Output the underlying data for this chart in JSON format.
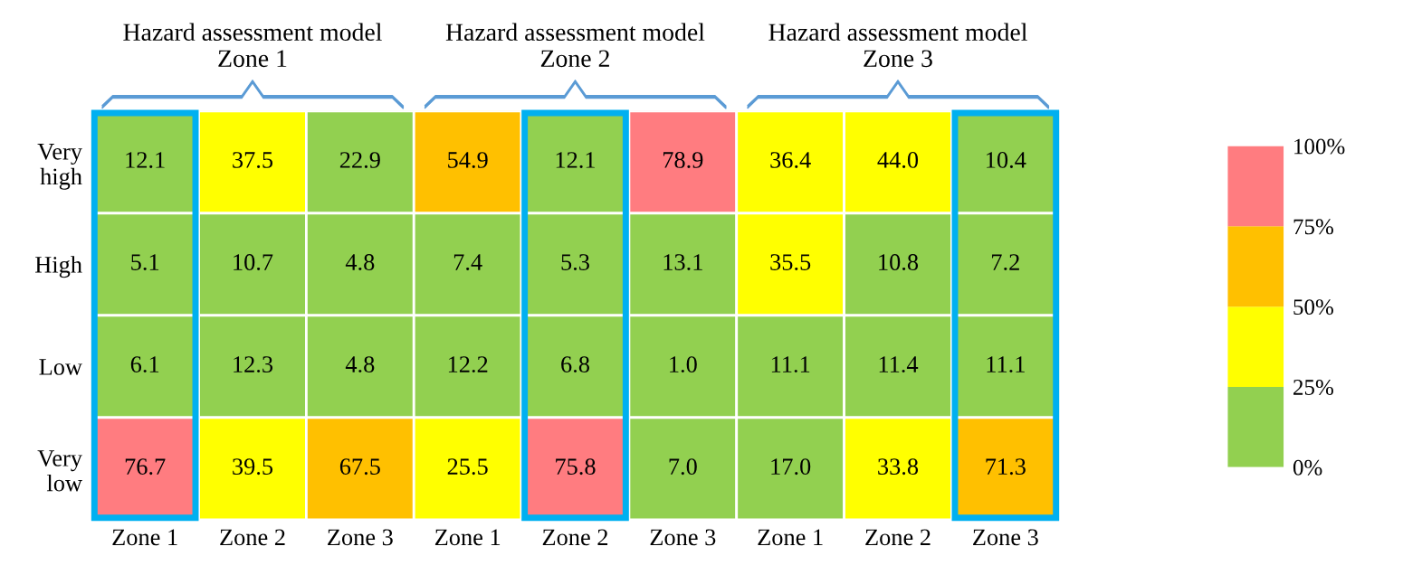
{
  "chart_data": {
    "type": "heatmap",
    "categories": [
      "Zone 1",
      "Zone 2",
      "Zone 3",
      "Zone 1",
      "Zone 2",
      "Zone 3",
      "Zone 1",
      "Zone 2",
      "Zone 3"
    ],
    "y_categories": [
      "Very\nhigh",
      "High",
      "Low",
      "Very\nlow"
    ],
    "cells": [
      [
        12.1,
        37.5,
        22.9,
        54.9,
        12.1,
        78.9,
        36.4,
        44.0,
        10.4
      ],
      [
        5.1,
        10.7,
        4.8,
        7.4,
        5.3,
        13.1,
        35.5,
        10.8,
        7.2
      ],
      [
        6.1,
        12.3,
        4.8,
        12.2,
        6.8,
        1.0,
        11.1,
        11.4,
        11.1
      ],
      [
        76.7,
        39.5,
        67.5,
        25.5,
        75.8,
        7.0,
        17.0,
        33.8,
        71.3
      ]
    ],
    "cell_labels": [
      [
        "12.1",
        "37.5",
        "22.9",
        "54.9",
        "12.1",
        "78.9",
        "36.4",
        "44.0",
        "10.4"
      ],
      [
        "5.1",
        "10.7",
        "4.8",
        "7.4",
        "5.3",
        "13.1",
        "35.5",
        "10.8",
        "7.2"
      ],
      [
        "6.1",
        "12.3",
        "4.8",
        "12.2",
        "6.8",
        "1.0",
        "11.1",
        "11.4",
        "11.1"
      ],
      [
        "76.7",
        "39.5",
        "67.5",
        "25.5",
        "75.8",
        "7.0",
        "17.0",
        "33.8",
        "71.3"
      ]
    ],
    "clim": [
      0,
      100
    ],
    "cticks": [
      {
        "value": 0,
        "label": "0%"
      },
      {
        "value": 25,
        "label": "25%"
      },
      {
        "value": 50,
        "label": "50%"
      },
      {
        "value": 75,
        "label": "75%"
      },
      {
        "value": 100,
        "label": "100%"
      }
    ],
    "colors": [
      "#92d050",
      "#ffff00",
      "#ffc000",
      "#ff7c80"
    ],
    "data_labels": true,
    "annotations": [
      "Hazard assessment model\nZone 1",
      "Hazard assessment model\nZone 2",
      "Hazard assessment model\nZone 3"
    ]
  }
}
